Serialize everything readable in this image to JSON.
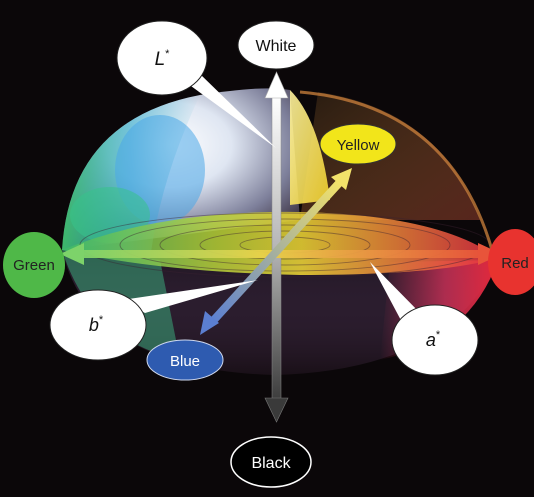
{
  "labels": {
    "white": "White",
    "black": "Black",
    "yellow": "Yellow",
    "blue": "Blue",
    "green": "Green",
    "red": "Red",
    "l_star": "L",
    "a_star": "a",
    "b_star": "b",
    "star": "*"
  },
  "colors": {
    "background": "#0b0709",
    "green_label": "#4fb848",
    "red_label": "#e8332f",
    "yellow_label": "#f2e51a",
    "blue_label": "#2e5bb0",
    "black_label": "#000000",
    "callout": "#ffffff"
  },
  "icons": {
    "axes": "double-headed-arrow-icon"
  }
}
